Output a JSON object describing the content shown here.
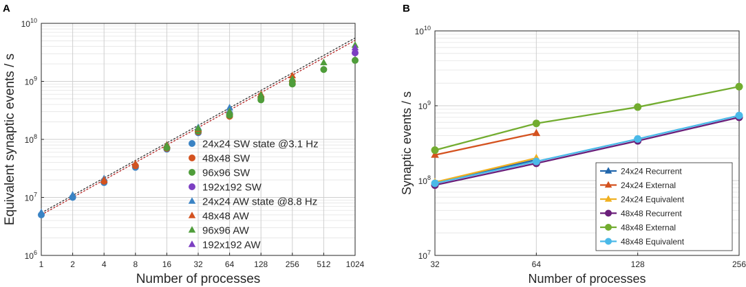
{
  "chart_data": [
    {
      "panel_label": "A",
      "type": "scatter",
      "x_scale": "log2",
      "y_scale": "log10",
      "xlabel": "Number of processes",
      "ylabel": "Equivalent synaptic events / s",
      "xlim": [
        1,
        1024
      ],
      "ylim": [
        1000000,
        10000000000
      ],
      "x_ticks": [
        1,
        2,
        4,
        8,
        16,
        32,
        64,
        128,
        256,
        512,
        1024
      ],
      "x_tick_labels": [
        "1",
        "2",
        "4",
        "8",
        "16",
        "32",
        "64",
        "128",
        "256",
        "512",
        "1024"
      ],
      "y_ticks": [
        {
          "value": 1000000,
          "base": "10",
          "exp": "6"
        },
        {
          "value": 10000000,
          "base": "10",
          "exp": "7"
        },
        {
          "value": 100000000,
          "base": "10",
          "exp": "8"
        },
        {
          "value": 1000000000,
          "base": "10",
          "exp": "9"
        },
        {
          "value": 10000000000,
          "base": "10",
          "exp": "10"
        }
      ],
      "grid": true,
      "legend_position": "bottom-right",
      "colors": {
        "blue": "#3a83c4",
        "red": "#d4521f",
        "green": "#4f9d3a",
        "purple": "#7c3fc2",
        "dashed_red": "#b22222",
        "dashed_dark": "#333333"
      },
      "reference_lines": [
        {
          "name": "ideal-scaling-sw",
          "color": "#b22222",
          "x": [
            1,
            1024
          ],
          "y": [
            5000000,
            5100000000
          ]
        },
        {
          "name": "ideal-scaling-aw",
          "color": "#333333",
          "x": [
            1,
            1024
          ],
          "y": [
            5400000,
            5600000000
          ]
        }
      ],
      "series": [
        {
          "name": "24x24 SW state @3.1 Hz",
          "marker": "circle",
          "color": "#3a83c4",
          "x": [
            1,
            2,
            4,
            8,
            16,
            32,
            64
          ],
          "y": [
            5000000,
            10000000,
            18000000,
            33000000,
            68000000,
            130000000,
            280000000
          ]
        },
        {
          "name": "48x48 SW",
          "marker": "circle",
          "color": "#d4521f",
          "x": [
            4,
            8,
            16,
            32,
            64,
            128,
            256
          ],
          "y": [
            19000000,
            35000000,
            70000000,
            135000000,
            250000000,
            520000000,
            1000000000
          ]
        },
        {
          "name": "96x96 SW",
          "marker": "circle",
          "color": "#4f9d3a",
          "x": [
            16,
            32,
            64,
            128,
            256,
            512,
            1024
          ],
          "y": [
            72000000,
            140000000,
            260000000,
            480000000,
            900000000,
            1600000000,
            2300000000
          ]
        },
        {
          "name": "192x192 SW",
          "marker": "circle",
          "color": "#7c3fc2",
          "x": [
            1024
          ],
          "y": [
            3100000000
          ]
        },
        {
          "name": "24x24 AW state @8.8 Hz",
          "marker": "triangle",
          "color": "#3a83c4",
          "x": [
            1,
            2,
            4,
            8,
            16,
            32,
            64
          ],
          "y": [
            5500000,
            11000000,
            21000000,
            38000000,
            80000000,
            160000000,
            350000000
          ]
        },
        {
          "name": "48x48 AW",
          "marker": "triangle",
          "color": "#d4521f",
          "x": [
            4,
            8,
            16,
            32,
            64,
            128,
            256
          ],
          "y": [
            20000000,
            38000000,
            80000000,
            150000000,
            300000000,
            600000000,
            1250000000
          ]
        },
        {
          "name": "96x96 AW",
          "marker": "triangle",
          "color": "#4f9d3a",
          "x": [
            16,
            32,
            64,
            128,
            256,
            512,
            1024
          ],
          "y": [
            78000000,
            155000000,
            300000000,
            580000000,
            1100000000,
            2100000000,
            4200000000
          ]
        },
        {
          "name": "192x192 AW",
          "marker": "triangle",
          "color": "#7c3fc2",
          "x": [
            1024
          ],
          "y": [
            3800000000
          ]
        }
      ]
    },
    {
      "panel_label": "B",
      "type": "line",
      "x_scale": "log2",
      "y_scale": "log10",
      "xlabel": "Number of processes",
      "ylabel": "Synaptic events / s",
      "xlim": [
        32,
        256
      ],
      "ylim": [
        10000000,
        10000000000
      ],
      "x_ticks": [
        32,
        64,
        128,
        256
      ],
      "x_tick_labels": [
        "32",
        "64",
        "128",
        "256"
      ],
      "y_ticks": [
        {
          "value": 10000000,
          "base": "10",
          "exp": "7"
        },
        {
          "value": 100000000,
          "base": "10",
          "exp": "8"
        },
        {
          "value": 1000000000,
          "base": "10",
          "exp": "9"
        },
        {
          "value": 10000000000,
          "base": "10",
          "exp": "10"
        }
      ],
      "grid": true,
      "legend_position": "bottom-right",
      "series": [
        {
          "name": "24x24 Recurrent",
          "marker": "triangle",
          "color": "#2166ac",
          "x": [
            32,
            64
          ],
          "y": [
            92000000,
            190000000
          ]
        },
        {
          "name": "24x24 External",
          "marker": "triangle",
          "color": "#d4521f",
          "x": [
            32,
            64
          ],
          "y": [
            220000000,
            430000000
          ]
        },
        {
          "name": "24x24 Equivalent",
          "marker": "triangle",
          "color": "#f0b020",
          "x": [
            32,
            64
          ],
          "y": [
            95000000,
            200000000
          ]
        },
        {
          "name": "48x48 Recurrent",
          "marker": "circle",
          "color": "#6a1f7a",
          "x": [
            32,
            64,
            128,
            256
          ],
          "y": [
            87000000,
            170000000,
            340000000,
            700000000
          ]
        },
        {
          "name": "48x48 External",
          "marker": "circle",
          "color": "#72ac2f",
          "x": [
            32,
            64,
            128,
            256
          ],
          "y": [
            255000000,
            580000000,
            960000000,
            1800000000
          ]
        },
        {
          "name": "48x48 Equivalent",
          "marker": "circle",
          "color": "#4ab9e8",
          "x": [
            32,
            64,
            128,
            256
          ],
          "y": [
            92000000,
            180000000,
            360000000,
            740000000
          ]
        }
      ]
    }
  ]
}
